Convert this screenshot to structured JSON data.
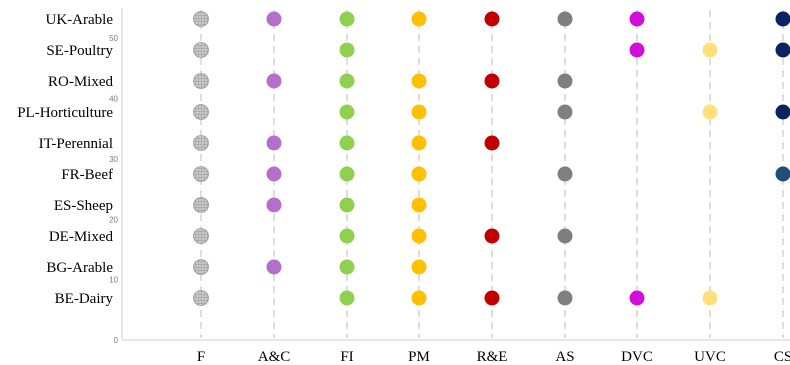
{
  "chart_data": {
    "type": "scatter",
    "title": "",
    "xlabel": "",
    "ylabel": "",
    "ylim": [
      0,
      55
    ],
    "yticks": [
      0,
      10,
      20,
      30,
      40,
      50
    ],
    "grid": "vertical dashed",
    "legend": "none",
    "columns": [
      "F",
      "A&C",
      "FI",
      "PM",
      "R&E",
      "AS",
      "DVC",
      "UVC",
      "CS"
    ],
    "rows": [
      "UK-Arable",
      "SE-Poultry",
      "RO-Mixed",
      "PL-Horticulture",
      "IT-Perennial",
      "FR-Beef",
      "ES-Sheep",
      "DE-Mixed",
      "BG-Arable",
      "BE-Dairy"
    ],
    "colors": {
      "F": "#a6a6a6",
      "A&C": "#b36fc9",
      "FI": "#8fd14f",
      "PM": "#ffc000",
      "R&E": "#c00000",
      "AS": "#7f7f7f",
      "DVC": "#d10fd9",
      "UVC": "#ffe07a",
      "CS": "#0b2460",
      "CS_alt": "#1f4e79"
    },
    "points": [
      {
        "row": "UK-Arable",
        "column": "F"
      },
      {
        "row": "UK-Arable",
        "column": "A&C"
      },
      {
        "row": "UK-Arable",
        "column": "FI"
      },
      {
        "row": "UK-Arable",
        "column": "PM"
      },
      {
        "row": "UK-Arable",
        "column": "R&E"
      },
      {
        "row": "UK-Arable",
        "column": "AS"
      },
      {
        "row": "UK-Arable",
        "column": "DVC"
      },
      {
        "row": "UK-Arable",
        "column": "CS"
      },
      {
        "row": "SE-Poultry",
        "column": "F"
      },
      {
        "row": "SE-Poultry",
        "column": "FI"
      },
      {
        "row": "SE-Poultry",
        "column": "DVC"
      },
      {
        "row": "SE-Poultry",
        "column": "UVC"
      },
      {
        "row": "SE-Poultry",
        "column": "CS"
      },
      {
        "row": "RO-Mixed",
        "column": "F"
      },
      {
        "row": "RO-Mixed",
        "column": "A&C"
      },
      {
        "row": "RO-Mixed",
        "column": "FI"
      },
      {
        "row": "RO-Mixed",
        "column": "PM"
      },
      {
        "row": "RO-Mixed",
        "column": "R&E"
      },
      {
        "row": "RO-Mixed",
        "column": "AS"
      },
      {
        "row": "PL-Horticulture",
        "column": "F"
      },
      {
        "row": "PL-Horticulture",
        "column": "FI"
      },
      {
        "row": "PL-Horticulture",
        "column": "PM"
      },
      {
        "row": "PL-Horticulture",
        "column": "AS"
      },
      {
        "row": "PL-Horticulture",
        "column": "UVC"
      },
      {
        "row": "PL-Horticulture",
        "column": "CS"
      },
      {
        "row": "IT-Perennial",
        "column": "F"
      },
      {
        "row": "IT-Perennial",
        "column": "A&C"
      },
      {
        "row": "IT-Perennial",
        "column": "FI"
      },
      {
        "row": "IT-Perennial",
        "column": "PM"
      },
      {
        "row": "IT-Perennial",
        "column": "R&E"
      },
      {
        "row": "FR-Beef",
        "column": "F"
      },
      {
        "row": "FR-Beef",
        "column": "A&C"
      },
      {
        "row": "FR-Beef",
        "column": "FI"
      },
      {
        "row": "FR-Beef",
        "column": "PM"
      },
      {
        "row": "FR-Beef",
        "column": "AS"
      },
      {
        "row": "FR-Beef",
        "column": "CS",
        "color": "CS_alt"
      },
      {
        "row": "ES-Sheep",
        "column": "F"
      },
      {
        "row": "ES-Sheep",
        "column": "A&C"
      },
      {
        "row": "ES-Sheep",
        "column": "FI"
      },
      {
        "row": "ES-Sheep",
        "column": "PM"
      },
      {
        "row": "DE-Mixed",
        "column": "F"
      },
      {
        "row": "DE-Mixed",
        "column": "FI"
      },
      {
        "row": "DE-Mixed",
        "column": "PM"
      },
      {
        "row": "DE-Mixed",
        "column": "R&E"
      },
      {
        "row": "DE-Mixed",
        "column": "AS"
      },
      {
        "row": "BG-Arable",
        "column": "F"
      },
      {
        "row": "BG-Arable",
        "column": "A&C"
      },
      {
        "row": "BG-Arable",
        "column": "FI"
      },
      {
        "row": "BG-Arable",
        "column": "PM"
      },
      {
        "row": "BE-Dairy",
        "column": "F"
      },
      {
        "row": "BE-Dairy",
        "column": "FI"
      },
      {
        "row": "BE-Dairy",
        "column": "PM"
      },
      {
        "row": "BE-Dairy",
        "column": "R&E"
      },
      {
        "row": "BE-Dairy",
        "column": "AS"
      },
      {
        "row": "BE-Dairy",
        "column": "DVC"
      },
      {
        "row": "BE-Dairy",
        "column": "UVC"
      }
    ]
  }
}
